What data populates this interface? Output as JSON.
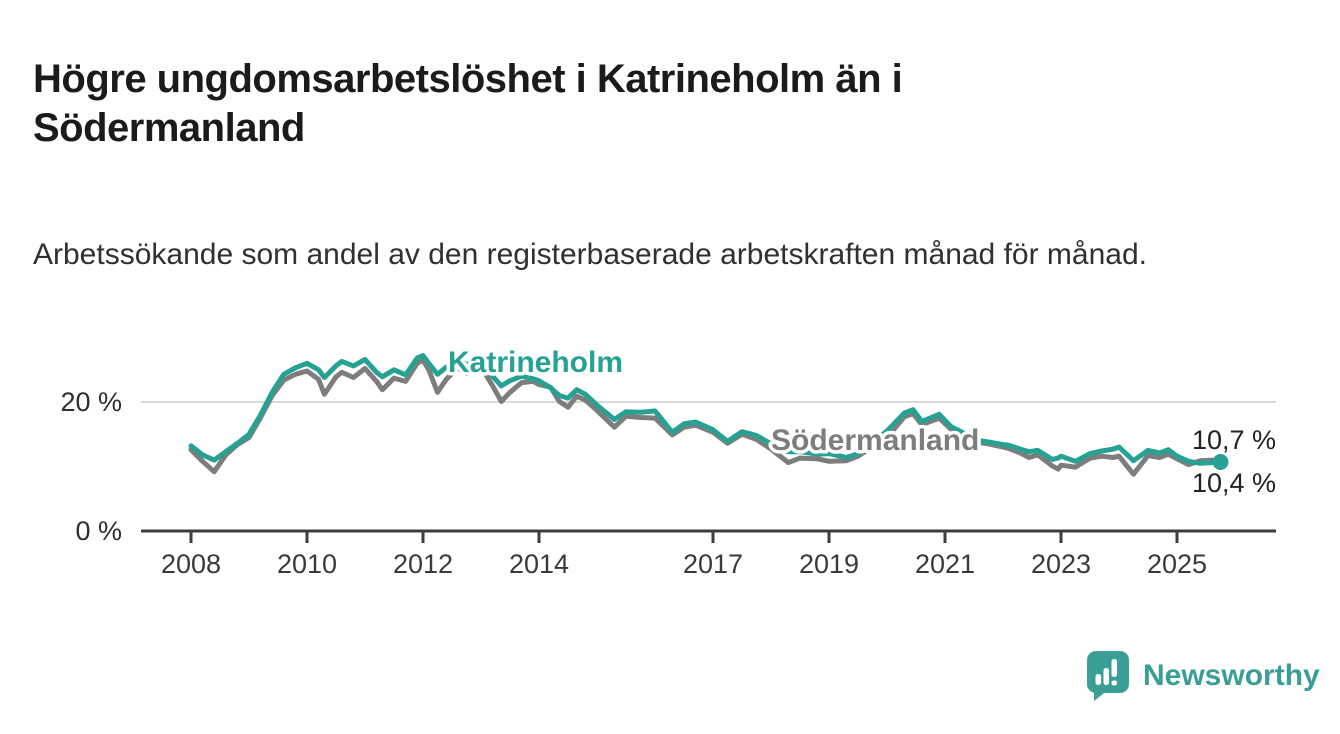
{
  "title": "Högre ungdomsarbetslöshet i Katrineholm än i Södermanland",
  "subtitle": "Arbetssökande som andel av den registerbaserade arbetskraften månad för månad.",
  "branding": {
    "name": "Newsworthy",
    "color": "#3a9e96",
    "icon": "speech-bubble-bar-chart"
  },
  "chart_data": {
    "type": "line",
    "unit": "%",
    "x_unit": "year (monthly series, sampled)",
    "title": "Högre ungdomsarbetslöshet i Katrineholm än i Södermanland",
    "subtitle": "Arbetssökande som andel av den registerbaserade arbetskraften månad för månad.",
    "grid": "single horizontal gridline at 20 %",
    "legend": "inline series labels on chart",
    "ylim": [
      0,
      31
    ],
    "xlim": [
      2007.2,
      2026.8
    ],
    "yticks": [
      {
        "label": "0 %",
        "value": 0
      },
      {
        "label": "20 %",
        "value": 20
      }
    ],
    "xticks": [
      {
        "label": "2008",
        "year": 2008
      },
      {
        "label": "2010",
        "year": 2010
      },
      {
        "label": "2012",
        "year": 2012
      },
      {
        "label": "2014",
        "year": 2014
      },
      {
        "label": "2017",
        "year": 2017
      },
      {
        "label": "2019",
        "year": 2019
      },
      {
        "label": "2021",
        "year": 2021
      },
      {
        "label": "2023",
        "year": 2023
      },
      {
        "label": "2025",
        "year": 2025
      }
    ],
    "x": [
      2008.0,
      2008.2,
      2008.4,
      2008.6,
      2008.8,
      2009.0,
      2009.2,
      2009.4,
      2009.6,
      2009.8,
      2010.0,
      2010.2,
      2010.3,
      2010.5,
      2010.6,
      2010.8,
      2011.0,
      2011.2,
      2011.3,
      2011.5,
      2011.7,
      2011.9,
      2012.0,
      2012.1,
      2012.25,
      2012.4,
      2012.6,
      2012.75,
      2013.0,
      2013.2,
      2013.35,
      2013.5,
      2013.7,
      2013.9,
      2014.0,
      2014.2,
      2014.35,
      2014.5,
      2014.65,
      2014.8,
      2015.0,
      2015.3,
      2015.5,
      2015.75,
      2016.0,
      2016.3,
      2016.5,
      2016.7,
      2017.0,
      2017.25,
      2017.5,
      2017.75,
      2018.0,
      2018.3,
      2018.5,
      2018.8,
      2019.0,
      2019.3,
      2019.5,
      2020.0,
      2020.3,
      2020.45,
      2020.6,
      2020.9,
      2021.1,
      2021.3,
      2021.6,
      2021.75,
      2022.0,
      2022.1,
      2022.3,
      2022.45,
      2022.6,
      2022.85,
      2022.95,
      2023.0,
      2023.25,
      2023.5,
      2023.7,
      2023.9,
      2024.0,
      2024.25,
      2024.5,
      2024.7,
      2024.85,
      2025.0,
      2025.2,
      2025.4,
      2025.6,
      2025.75
    ],
    "series": [
      {
        "name": "Katrineholm",
        "color": "#25a294",
        "end_label": "10,7 %",
        "end_value": 10.7,
        "values": [
          13.2,
          11.8,
          11.0,
          12.3,
          13.6,
          15.0,
          18.0,
          21.5,
          24.3,
          25.3,
          26.0,
          25.0,
          23.8,
          25.6,
          26.3,
          25.6,
          26.6,
          24.6,
          23.9,
          25.0,
          24.2,
          26.8,
          27.2,
          26.0,
          24.3,
          25.4,
          26.5,
          25.8,
          27.0,
          24.0,
          22.5,
          23.3,
          24.0,
          23.6,
          23.3,
          22.2,
          21.0,
          20.6,
          21.9,
          21.2,
          19.5,
          17.3,
          18.5,
          18.4,
          18.6,
          15.3,
          16.6,
          16.9,
          15.7,
          13.9,
          15.4,
          14.8,
          13.5,
          12.3,
          12.3,
          11.9,
          12.0,
          11.4,
          12.0,
          15.5,
          18.3,
          18.8,
          17.0,
          18.1,
          16.2,
          15.3,
          14.0,
          13.8,
          13.4,
          13.3,
          12.7,
          12.3,
          12.5,
          11.1,
          11.3,
          11.6,
          10.8,
          12.0,
          12.4,
          12.7,
          13.0,
          10.9,
          12.5,
          12.1,
          12.6,
          11.6,
          10.8,
          10.5,
          10.6,
          10.7
        ]
      },
      {
        "name": "Södermanland",
        "color": "#7d7d7d",
        "end_label": "10,4 %",
        "end_value": 10.4,
        "values": [
          12.6,
          10.8,
          9.2,
          11.8,
          13.4,
          14.5,
          17.6,
          21.0,
          23.4,
          24.3,
          24.8,
          23.5,
          21.2,
          23.9,
          24.6,
          23.8,
          25.2,
          23.2,
          21.9,
          23.7,
          23.2,
          26.0,
          26.5,
          25.0,
          21.5,
          23.5,
          25.3,
          24.4,
          25.5,
          22.5,
          20.1,
          21.5,
          23.0,
          23.2,
          22.7,
          22.3,
          20.1,
          19.2,
          20.9,
          20.3,
          18.7,
          16.1,
          17.8,
          17.6,
          17.5,
          14.9,
          16.1,
          16.4,
          15.3,
          13.6,
          15.0,
          14.2,
          12.7,
          10.6,
          11.3,
          11.2,
          10.8,
          10.9,
          11.6,
          14.5,
          17.7,
          18.2,
          16.5,
          17.5,
          15.8,
          15.1,
          13.7,
          13.5,
          13.0,
          12.8,
          12.1,
          11.4,
          11.8,
          10.1,
          9.6,
          10.2,
          9.9,
          11.3,
          11.6,
          11.4,
          11.6,
          8.8,
          11.7,
          11.4,
          11.9,
          11.2,
          10.3,
          10.9,
          11.0,
          10.4
        ]
      }
    ]
  }
}
